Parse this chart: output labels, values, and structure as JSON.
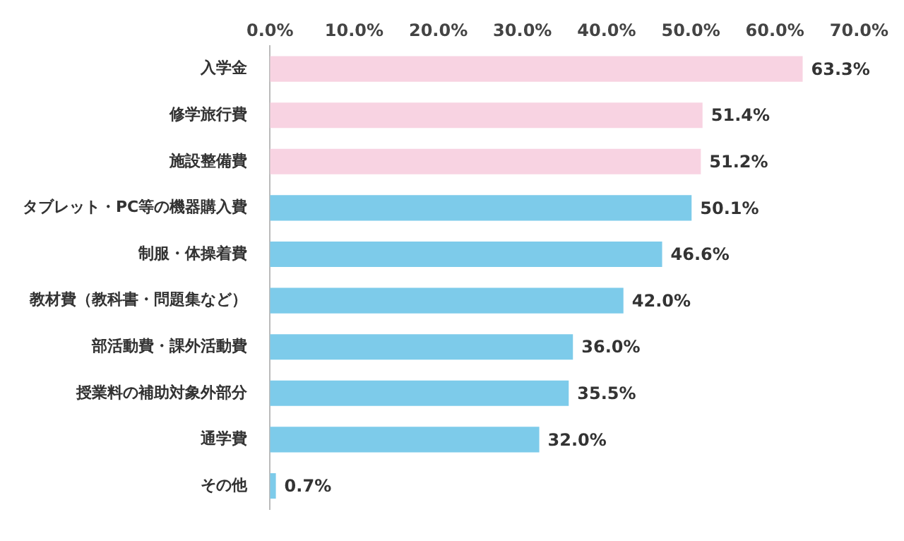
{
  "chart_data": {
    "type": "bar",
    "orientation": "horizontal",
    "categories": [
      "入学金",
      "修学旅行費",
      "施設整備費",
      "タブレット・PC等の機器購入費",
      "制服・体操着費",
      "教材費（教科書・問題集など）",
      "部活動費・課外活動費",
      "授業料の補助対象外部分",
      "通学費",
      "その他"
    ],
    "values": [
      63.3,
      51.4,
      51.2,
      50.1,
      46.6,
      42.0,
      36.0,
      35.5,
      32.0,
      0.7
    ],
    "colors": [
      "#f8d3e2",
      "#f8d3e2",
      "#f8d3e2",
      "#7dcbea",
      "#7dcbea",
      "#7dcbea",
      "#7dcbea",
      "#7dcbea",
      "#7dcbea",
      "#7dcbea"
    ],
    "value_labels": [
      "63.3%",
      "51.4%",
      "51.2%",
      "50.1%",
      "46.6%",
      "42.0%",
      "36.0%",
      "35.5%",
      "32.0%",
      "0.7%"
    ],
    "xlim": [
      0,
      70
    ],
    "xticks": [
      {
        "value": 0,
        "label": "0.0%"
      },
      {
        "value": 10,
        "label": "10.0%"
      },
      {
        "value": 20,
        "label": "20.0%"
      },
      {
        "value": 30,
        "label": "30.0%"
      },
      {
        "value": 40,
        "label": "40.0%"
      },
      {
        "value": 50,
        "label": "50.0%"
      },
      {
        "value": 60,
        "label": "60.0%"
      },
      {
        "value": 70,
        "label": "70.0%"
      }
    ],
    "grid": false,
    "legend": false
  }
}
